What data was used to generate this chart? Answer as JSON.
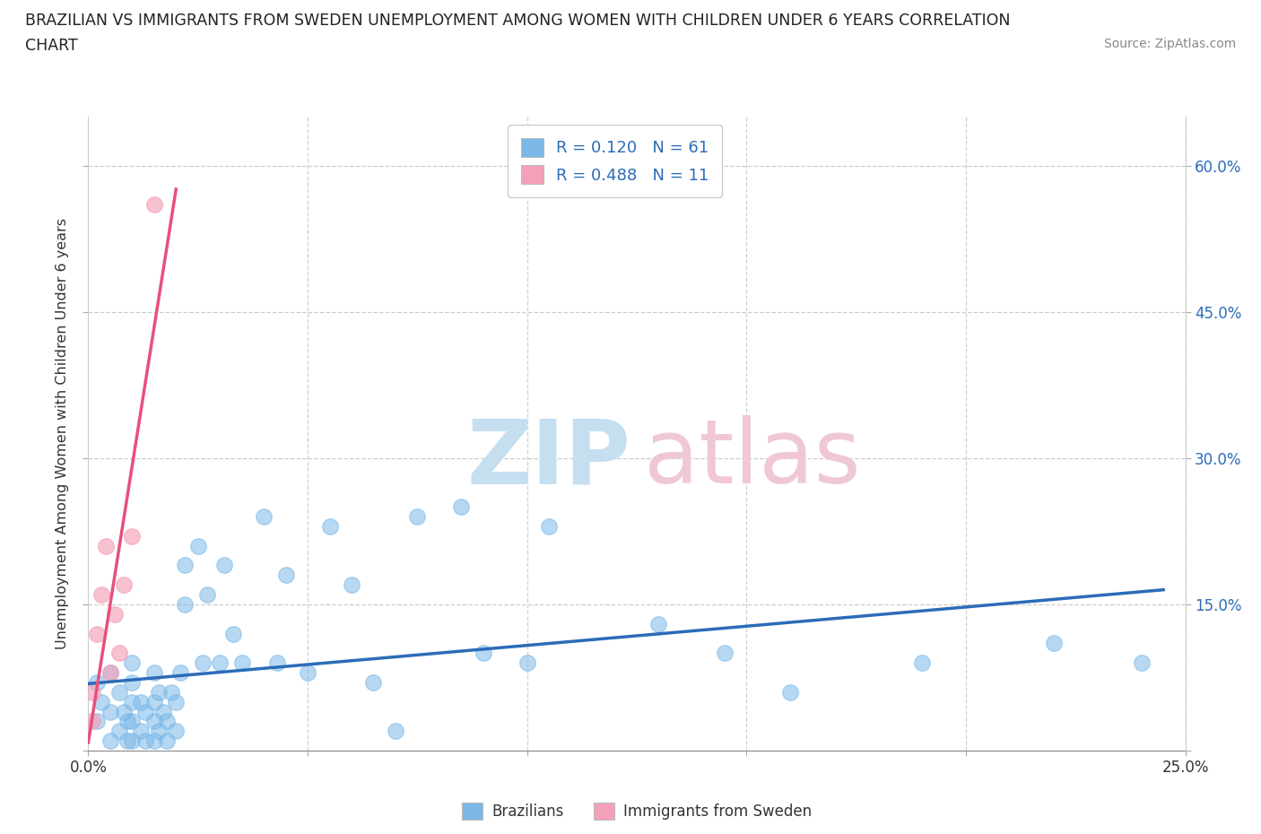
{
  "title_line1": "BRAZILIAN VS IMMIGRANTS FROM SWEDEN UNEMPLOYMENT AMONG WOMEN WITH CHILDREN UNDER 6 YEARS CORRELATION",
  "title_line2": "CHART",
  "source": "Source: ZipAtlas.com",
  "ylabel": "Unemployment Among Women with Children Under 6 years",
  "xlim": [
    0.0,
    0.25
  ],
  "ylim": [
    0.0,
    0.65
  ],
  "ytick_positions": [
    0.0,
    0.15,
    0.3,
    0.45,
    0.6
  ],
  "ytick_labels": [
    "",
    "15.0%",
    "30.0%",
    "45.0%",
    "60.0%"
  ],
  "xtick_positions": [
    0.0,
    0.05,
    0.1,
    0.15,
    0.2,
    0.25
  ],
  "xtick_labels": [
    "0.0%",
    "",
    "",
    "",
    "",
    "25.0%"
  ],
  "r_brazilian": 0.12,
  "n_brazilian": 61,
  "r_sweden": 0.488,
  "n_sweden": 11,
  "blue_scatter_color": "#7bb8e8",
  "pink_scatter_color": "#f4a0b8",
  "blue_line_color": "#2b6cb8",
  "pink_line_color": "#e8507a",
  "legend_label_brazil": "Brazilians",
  "legend_label_sweden": "Immigrants from Sweden",
  "watermark_zip_color": "#c5dff0",
  "watermark_atlas_color": "#f0c8d4",
  "brazilian_x": [
    0.002,
    0.002,
    0.003,
    0.005,
    0.005,
    0.005,
    0.007,
    0.007,
    0.008,
    0.009,
    0.009,
    0.01,
    0.01,
    0.01,
    0.01,
    0.01,
    0.012,
    0.012,
    0.013,
    0.013,
    0.015,
    0.015,
    0.015,
    0.015,
    0.016,
    0.016,
    0.017,
    0.018,
    0.018,
    0.019,
    0.02,
    0.02,
    0.021,
    0.022,
    0.022,
    0.025,
    0.026,
    0.027,
    0.03,
    0.031,
    0.033,
    0.035,
    0.04,
    0.043,
    0.045,
    0.05,
    0.055,
    0.06,
    0.065,
    0.07,
    0.075,
    0.085,
    0.09,
    0.1,
    0.105,
    0.13,
    0.145,
    0.16,
    0.19,
    0.22,
    0.24
  ],
  "brazilian_y": [
    0.07,
    0.03,
    0.05,
    0.01,
    0.04,
    0.08,
    0.02,
    0.06,
    0.04,
    0.01,
    0.03,
    0.01,
    0.03,
    0.05,
    0.07,
    0.09,
    0.02,
    0.05,
    0.01,
    0.04,
    0.01,
    0.03,
    0.05,
    0.08,
    0.02,
    0.06,
    0.04,
    0.01,
    0.03,
    0.06,
    0.02,
    0.05,
    0.08,
    0.15,
    0.19,
    0.21,
    0.09,
    0.16,
    0.09,
    0.19,
    0.12,
    0.09,
    0.24,
    0.09,
    0.18,
    0.08,
    0.23,
    0.17,
    0.07,
    0.02,
    0.24,
    0.25,
    0.1,
    0.09,
    0.23,
    0.13,
    0.1,
    0.06,
    0.09,
    0.11,
    0.09
  ],
  "sweden_x": [
    0.001,
    0.001,
    0.002,
    0.003,
    0.004,
    0.005,
    0.006,
    0.007,
    0.008,
    0.01,
    0.015
  ],
  "sweden_y": [
    0.03,
    0.06,
    0.12,
    0.16,
    0.21,
    0.08,
    0.14,
    0.1,
    0.17,
    0.22,
    0.56
  ]
}
